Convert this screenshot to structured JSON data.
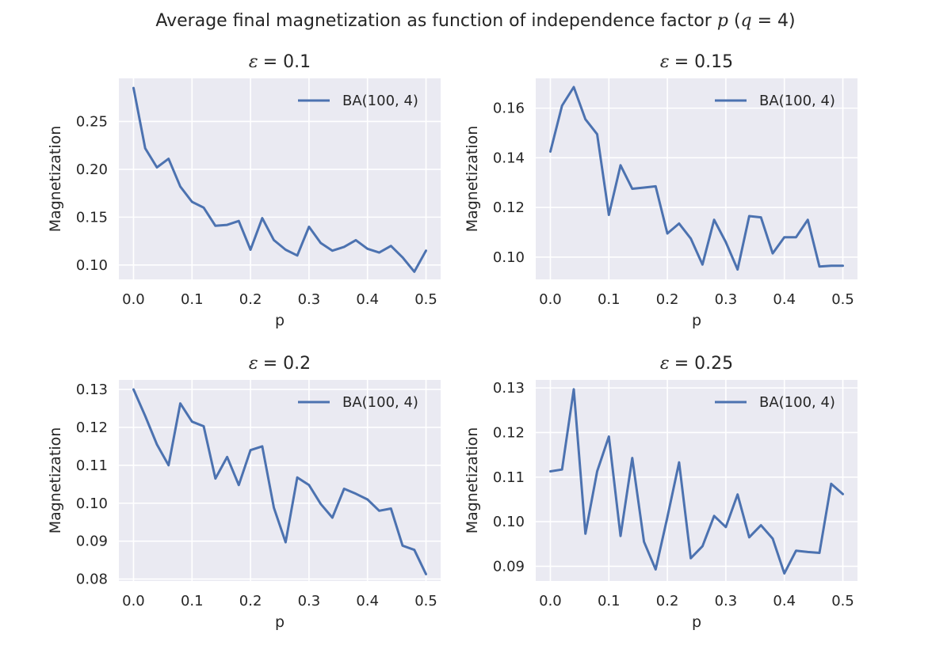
{
  "figure": {
    "suptitle_prefix": "Average final magnetization as function of independence factor ",
    "suptitle_p": "p",
    "suptitle_open": " (",
    "suptitle_q": "q",
    "suptitle_eq": " = 4)"
  },
  "style": {
    "plot_background": "#eaeaf2",
    "grid_color": "#ffffff",
    "line_color": "#4c72b0",
    "text_color": "#262626"
  },
  "chart_data": [
    {
      "type": "line",
      "title_symbol": "ε",
      "title_value": "= 0.1",
      "xlabel": "p",
      "ylabel": "Magnetization",
      "xlim": [
        -0.025,
        0.525
      ],
      "ylim": [
        0.085,
        0.295
      ],
      "xticks": [
        0.0,
        0.1,
        0.2,
        0.3,
        0.4,
        0.5
      ],
      "xtick_labels": [
        "0.0",
        "0.1",
        "0.2",
        "0.3",
        "0.4",
        "0.5"
      ],
      "yticks": [
        0.1,
        0.15,
        0.2,
        0.25
      ],
      "ytick_labels": [
        "0.10",
        "0.15",
        "0.20",
        "0.25"
      ],
      "grid": true,
      "legend": "top-right",
      "series": [
        {
          "name": "BA(100, 4)",
          "x": [
            0.0,
            0.02,
            0.04,
            0.06,
            0.08,
            0.1,
            0.12,
            0.14,
            0.16,
            0.18,
            0.2,
            0.22,
            0.24,
            0.26,
            0.28,
            0.3,
            0.32,
            0.34,
            0.36,
            0.38,
            0.4,
            0.42,
            0.44,
            0.46,
            0.48,
            0.5
          ],
          "y": [
            0.285,
            0.222,
            0.202,
            0.211,
            0.182,
            0.166,
            0.16,
            0.141,
            0.142,
            0.146,
            0.116,
            0.149,
            0.126,
            0.116,
            0.11,
            0.14,
            0.123,
            0.115,
            0.119,
            0.126,
            0.117,
            0.113,
            0.12,
            0.108,
            0.093,
            0.115
          ]
        }
      ]
    },
    {
      "type": "line",
      "title_symbol": "ε",
      "title_value": "= 0.15",
      "xlabel": "p",
      "ylabel": "Magnetization",
      "xlim": [
        -0.025,
        0.525
      ],
      "ylim": [
        0.091,
        0.172
      ],
      "xticks": [
        0.0,
        0.1,
        0.2,
        0.3,
        0.4,
        0.5
      ],
      "xtick_labels": [
        "0.0",
        "0.1",
        "0.2",
        "0.3",
        "0.4",
        "0.5"
      ],
      "yticks": [
        0.1,
        0.12,
        0.14,
        0.16
      ],
      "ytick_labels": [
        "0.10",
        "0.12",
        "0.14",
        "0.16"
      ],
      "grid": true,
      "legend": "top-right",
      "series": [
        {
          "name": "BA(100, 4)",
          "x": [
            0.0,
            0.02,
            0.04,
            0.06,
            0.08,
            0.1,
            0.12,
            0.14,
            0.16,
            0.18,
            0.2,
            0.22,
            0.24,
            0.26,
            0.28,
            0.3,
            0.32,
            0.34,
            0.36,
            0.38,
            0.4,
            0.42,
            0.44,
            0.46,
            0.48,
            0.5
          ],
          "y": [
            0.1425,
            0.161,
            0.1685,
            0.1555,
            0.1495,
            0.117,
            0.137,
            0.1275,
            0.128,
            0.1285,
            0.1095,
            0.1135,
            0.1075,
            0.097,
            0.115,
            0.106,
            0.095,
            0.1165,
            0.116,
            0.1015,
            0.108,
            0.108,
            0.115,
            0.0962,
            0.0965,
            0.0965
          ]
        }
      ]
    },
    {
      "type": "line",
      "title_symbol": "ε",
      "title_value": "= 0.2",
      "xlabel": "p",
      "ylabel": "Magnetization",
      "xlim": [
        -0.025,
        0.525
      ],
      "ylim": [
        0.0795,
        0.1325
      ],
      "xticks": [
        0.0,
        0.1,
        0.2,
        0.3,
        0.4,
        0.5
      ],
      "xtick_labels": [
        "0.0",
        "0.1",
        "0.2",
        "0.3",
        "0.4",
        "0.5"
      ],
      "yticks": [
        0.08,
        0.09,
        0.1,
        0.11,
        0.12,
        0.13
      ],
      "ytick_labels": [
        "0.08",
        "0.09",
        "0.10",
        "0.11",
        "0.12",
        "0.13"
      ],
      "grid": true,
      "legend": "top-right",
      "series": [
        {
          "name": "BA(100, 4)",
          "x": [
            0.0,
            0.02,
            0.04,
            0.06,
            0.08,
            0.1,
            0.12,
            0.14,
            0.16,
            0.18,
            0.2,
            0.22,
            0.24,
            0.26,
            0.28,
            0.3,
            0.32,
            0.34,
            0.36,
            0.38,
            0.4,
            0.42,
            0.44,
            0.46,
            0.48,
            0.5
          ],
          "y": [
            0.13,
            0.123,
            0.1155,
            0.11,
            0.1263,
            0.1215,
            0.1203,
            0.1065,
            0.1122,
            0.1048,
            0.114,
            0.115,
            0.0988,
            0.0897,
            0.1068,
            0.1048,
            0.0998,
            0.0962,
            0.1038,
            0.1025,
            0.101,
            0.098,
            0.0986,
            0.0888,
            0.0877,
            0.0813
          ]
        }
      ]
    },
    {
      "type": "line",
      "title_symbol": "ε",
      "title_value": "= 0.25",
      "xlabel": "p",
      "ylabel": "Magnetization",
      "xlim": [
        -0.025,
        0.525
      ],
      "ylim": [
        0.0867,
        0.1318
      ],
      "xticks": [
        0.0,
        0.1,
        0.2,
        0.3,
        0.4,
        0.5
      ],
      "xtick_labels": [
        "0.0",
        "0.1",
        "0.2",
        "0.3",
        "0.4",
        "0.5"
      ],
      "yticks": [
        0.09,
        0.1,
        0.11,
        0.12,
        0.13
      ],
      "ytick_labels": [
        "0.09",
        "0.10",
        "0.11",
        "0.12",
        "0.13"
      ],
      "grid": true,
      "legend": "top-right",
      "series": [
        {
          "name": "BA(100, 4)",
          "x": [
            0.0,
            0.02,
            0.04,
            0.06,
            0.08,
            0.1,
            0.12,
            0.14,
            0.16,
            0.18,
            0.2,
            0.22,
            0.24,
            0.26,
            0.28,
            0.3,
            0.32,
            0.34,
            0.36,
            0.38,
            0.4,
            0.42,
            0.44,
            0.46,
            0.48,
            0.5
          ],
          "y": [
            0.1113,
            0.1117,
            0.1297,
            0.0973,
            0.1113,
            0.1191,
            0.0968,
            0.1143,
            0.0955,
            0.0893,
            0.101,
            0.1133,
            0.0918,
            0.0945,
            0.1013,
            0.0988,
            0.1061,
            0.0965,
            0.0992,
            0.0962,
            0.0884,
            0.0935,
            0.0932,
            0.093,
            0.1085,
            0.1062
          ]
        }
      ]
    }
  ]
}
